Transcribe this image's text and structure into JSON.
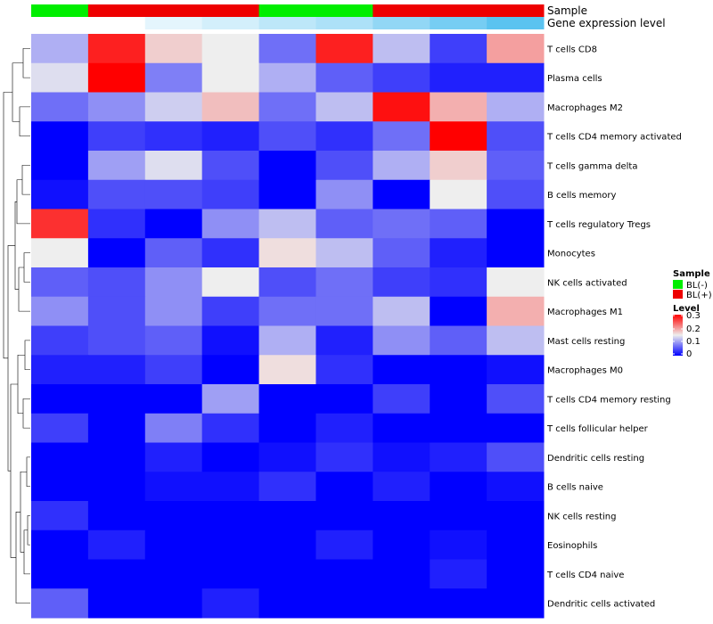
{
  "chart_data": {
    "type": "heatmap",
    "n_samples": 9,
    "rows": [
      {
        "label": "T cells CD8",
        "values": [
          0.11,
          0.28,
          0.17,
          0.15,
          0.07,
          0.28,
          0.12,
          0.04,
          0.2
        ]
      },
      {
        "label": "Plasma cells",
        "values": [
          0.14,
          0.3,
          0.08,
          0.15,
          0.11,
          0.06,
          0.04,
          0.02,
          0.02
        ]
      },
      {
        "label": "Macrophages M2",
        "values": [
          0.07,
          0.09,
          0.13,
          0.18,
          0.07,
          0.12,
          0.29,
          0.19,
          0.11
        ]
      },
      {
        "label": "T cells CD4 memory activated",
        "values": [
          0.0,
          0.04,
          0.03,
          0.02,
          0.05,
          0.03,
          0.07,
          0.3,
          0.05
        ]
      },
      {
        "label": "T cells gamma delta",
        "values": [
          0.0,
          0.1,
          0.14,
          0.05,
          0.0,
          0.05,
          0.11,
          0.17,
          0.06
        ]
      },
      {
        "label": "B cells memory",
        "values": [
          0.01,
          0.05,
          0.05,
          0.04,
          0.0,
          0.09,
          0.0,
          0.15,
          0.05
        ]
      },
      {
        "label": "T cells regulatory  Tregs",
        "values": [
          0.27,
          0.03,
          0.0,
          0.09,
          0.12,
          0.06,
          0.07,
          0.06,
          0.0
        ]
      },
      {
        "label": "Monocytes",
        "values": [
          0.15,
          0.0,
          0.06,
          0.03,
          0.16,
          0.12,
          0.06,
          0.02,
          0.0
        ]
      },
      {
        "label": "NK cells activated",
        "values": [
          0.06,
          0.05,
          0.09,
          0.15,
          0.05,
          0.07,
          0.04,
          0.03,
          0.15
        ]
      },
      {
        "label": "Macrophages M1",
        "values": [
          0.09,
          0.05,
          0.09,
          0.04,
          0.07,
          0.07,
          0.12,
          0.0,
          0.19
        ]
      },
      {
        "label": "Mast cells resting",
        "values": [
          0.04,
          0.05,
          0.06,
          0.01,
          0.11,
          0.02,
          0.09,
          0.06,
          0.12
        ]
      },
      {
        "label": "Macrophages M0",
        "values": [
          0.02,
          0.02,
          0.04,
          0.0,
          0.16,
          0.03,
          0.0,
          0.0,
          0.01
        ]
      },
      {
        "label": "T cells CD4 memory resting",
        "values": [
          0.0,
          0.0,
          0.0,
          0.1,
          0.0,
          0.0,
          0.04,
          0.0,
          0.05
        ]
      },
      {
        "label": "T cells follicular helper",
        "values": [
          0.04,
          0.0,
          0.08,
          0.03,
          0.0,
          0.02,
          0.0,
          0.0,
          0.0
        ]
      },
      {
        "label": "Dendritic cells resting",
        "values": [
          0.0,
          0.0,
          0.02,
          0.0,
          0.01,
          0.03,
          0.01,
          0.02,
          0.05
        ]
      },
      {
        "label": "B cells naive",
        "values": [
          0.0,
          0.0,
          0.01,
          0.01,
          0.03,
          0.0,
          0.02,
          0.0,
          0.01
        ]
      },
      {
        "label": "NK cells resting",
        "values": [
          0.03,
          0.0,
          0.0,
          0.0,
          0.0,
          0.0,
          0.0,
          0.0,
          0.0
        ]
      },
      {
        "label": "Eosinophils",
        "values": [
          0.0,
          0.02,
          0.0,
          0.0,
          0.0,
          0.02,
          0.0,
          0.01,
          0.0
        ]
      },
      {
        "label": "T cells CD4 naive",
        "values": [
          0.0,
          0.0,
          0.0,
          0.0,
          0.0,
          0.0,
          0.0,
          0.02,
          0.0
        ]
      },
      {
        "label": "Dendritic cells activated",
        "values": [
          0.06,
          0.0,
          0.0,
          0.02,
          0.0,
          0.0,
          0.0,
          0.0,
          0.0
        ]
      }
    ],
    "annotations": [
      {
        "label": "Sample",
        "values": [
          "BL(-)",
          "BL(+)",
          "BL(+)",
          "BL(+)",
          "BL(-)",
          "BL(-)",
          "BL(+)",
          "BL(+)",
          "BL(+)"
        ]
      },
      {
        "label": "Gene expression level",
        "values": [
          0.0,
          0.0,
          0.05,
          0.08,
          0.12,
          0.15,
          0.2,
          0.25,
          0.3
        ]
      }
    ],
    "sample_colors": {
      "BL(-)": "#00ee00",
      "BL(+)": "#ee0000"
    },
    "gene_expression_colors": {
      "low": "#ffffff",
      "high": "#5bc3f0"
    },
    "color_scale": {
      "low": "#0000ff",
      "mid": "#eeeeee",
      "high": "#ff0000",
      "min": 0,
      "mid_value": 0.15,
      "max": 0.3
    },
    "dendrogram": {
      "rows": "left",
      "columns": "none"
    },
    "legend": {
      "placement": "right",
      "sample_title": "Sample",
      "sample_entries": [
        "BL(-)",
        "BL(+)"
      ],
      "level_title": "Level",
      "level_ticks": [
        "0.3",
        "0.2",
        "0.1",
        "0"
      ]
    }
  }
}
